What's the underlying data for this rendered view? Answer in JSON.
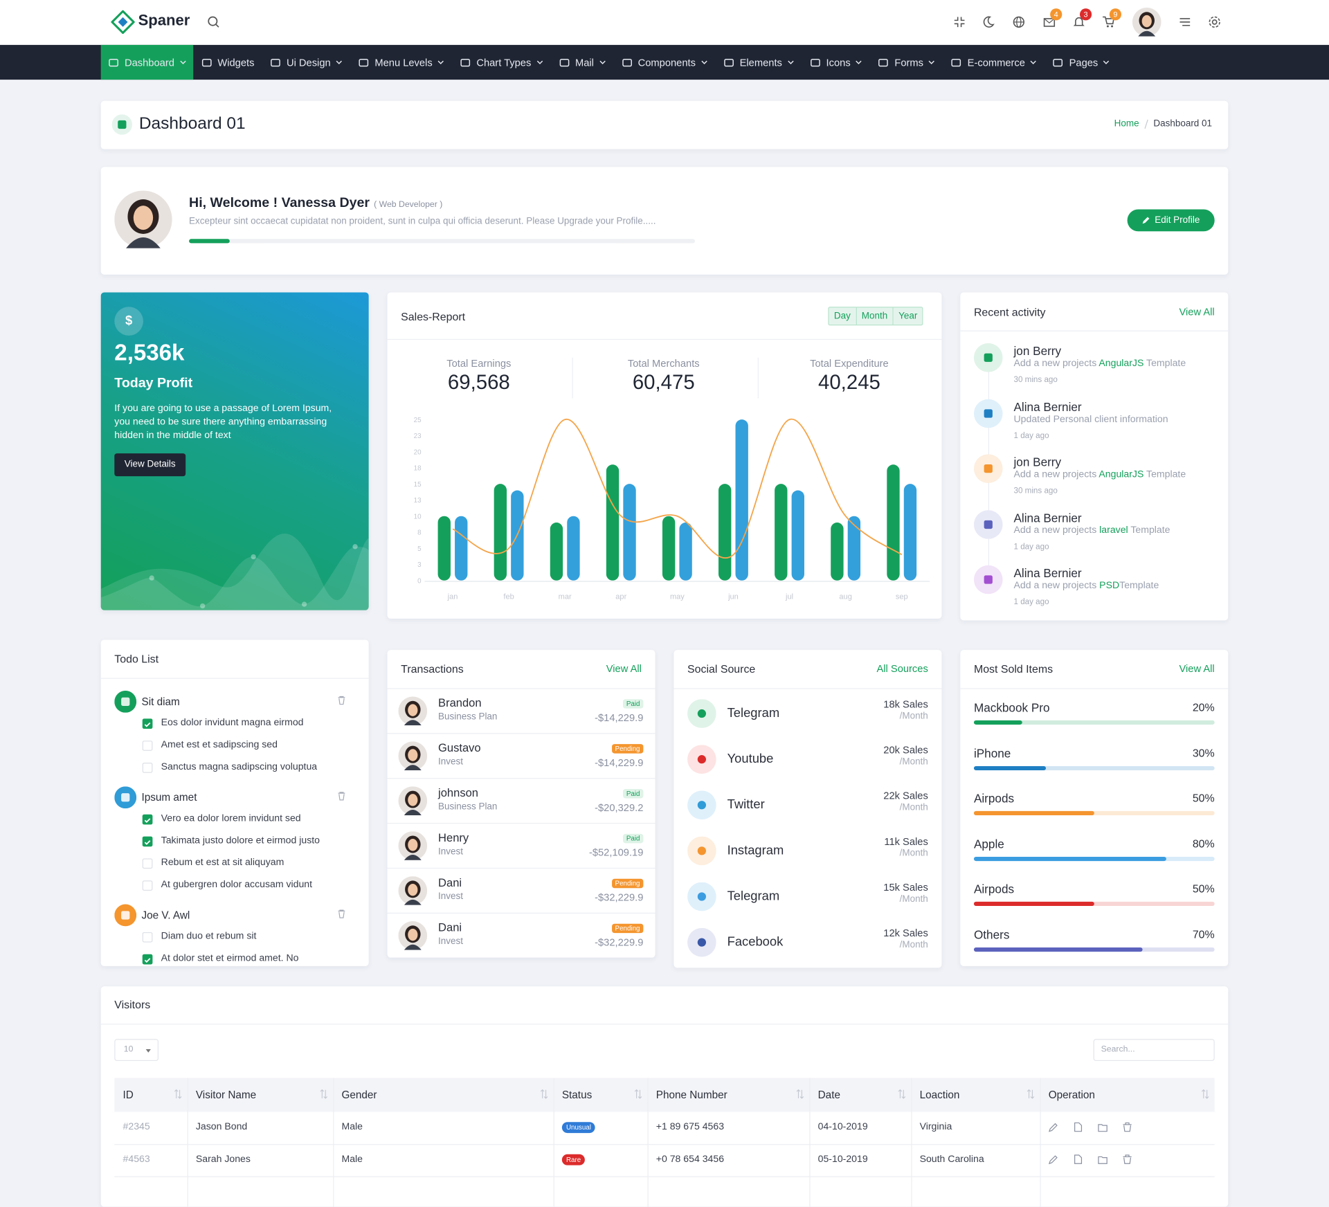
{
  "header": {
    "brand": "Spaner",
    "badges": [
      4,
      3,
      9
    ]
  },
  "nav": [
    "Dashboard",
    "Widgets",
    "Ui Design",
    "Menu Levels",
    "Chart Types",
    "Mail",
    "Components",
    "Elements",
    "Icons",
    "Forms",
    "E-commerce",
    "Pages"
  ],
  "page": {
    "title": "Dashboard 01",
    "breadcrumb": [
      "Home",
      "Dashboard 01"
    ]
  },
  "welcome": {
    "greeting": "Hi, Welcome ! Vanessa Dyer",
    "role": "( Web Developer )",
    "text": "Excepteur sint occaecat cupidatat non proident, sunt in culpa qui officia deserunt. Please Upgrade your Profile.....",
    "progress": 8,
    "button": "Edit Profile"
  },
  "profit": {
    "icon": "$",
    "value": "2,536k",
    "label": "Today Profit",
    "text": "If you are going to use a passage of Lorem Ipsum, you need to be sure there anything embarrassing hidden in the middle of text",
    "button": "View Details"
  },
  "sales": {
    "title": "Sales-Report",
    "periods": [
      "Day",
      "Month",
      "Year"
    ],
    "stats": [
      {
        "label": "Total Earnings",
        "value": "69,568"
      },
      {
        "label": "Total Merchants",
        "value": "60,475"
      },
      {
        "label": "Total Expenditure",
        "value": "40,245"
      }
    ]
  },
  "chart_data": {
    "type": "bar",
    "categories": [
      "jan",
      "feb",
      "mar",
      "apr",
      "may",
      "jun",
      "jul",
      "aug",
      "sep"
    ],
    "series": [
      {
        "color": "#14a05b",
        "values": [
          10,
          15,
          9,
          18,
          10,
          15,
          15,
          9,
          18
        ]
      },
      {
        "color": "#33a0dc",
        "values": [
          10,
          14,
          10,
          15,
          9,
          25,
          14,
          10,
          15
        ]
      },
      {
        "type": "line",
        "color": "#f4a54a",
        "values": [
          8,
          5,
          25,
          10,
          10,
          4,
          25,
          10,
          4
        ]
      }
    ],
    "ylim": [
      0,
      25
    ],
    "yticks": [
      0,
      {
        "value": 2.5,
        "label": "3"
      },
      5,
      {
        "value": 7.5,
        "label": "8"
      },
      10,
      {
        "value": 12.5,
        "label": "13"
      },
      15,
      {
        "value": 17.5,
        "label": "18"
      },
      20,
      {
        "value": 22.5,
        "label": "23"
      },
      25
    ],
    "grid": false
  },
  "activity": {
    "title": "Recent activity",
    "link": "View All",
    "items": [
      {
        "name": "jon Berry",
        "pre": "Add a new projects ",
        "highlight": "AngularJS",
        "post": " Template",
        "time": "30 mins ago"
      },
      {
        "name": "Alina Bernier",
        "pre": "Updated Personal client information",
        "time": "1 day ago"
      },
      {
        "name": "jon Berry",
        "pre": "Add a new projects ",
        "highlight": "AngularJS",
        "post": " Template",
        "time": "30 mins ago"
      },
      {
        "name": "Alina Bernier",
        "pre": "Add a new projects ",
        "highlight": "laravel",
        "post": " Template",
        "time": "1 day ago"
      },
      {
        "name": "Alina Bernier",
        "pre": "Add a new projects ",
        "highlight": "PSD",
        "post": "Template",
        "time": "1 day ago"
      }
    ]
  },
  "todo": {
    "title": "Todo List",
    "groups": [
      {
        "title": "Sit diam",
        "items": [
          {
            "text": "Eos dolor invidunt magna eirmod",
            "checked": true
          },
          {
            "text": "Amet est et sadipscing sed",
            "checked": false
          },
          {
            "text": "Sanctus magna sadipscing voluptua",
            "checked": false
          }
        ]
      },
      {
        "title": "Ipsum amet",
        "items": [
          {
            "text": "Vero ea dolor lorem invidunt sed",
            "checked": true
          },
          {
            "text": "Takimata justo dolore et eirmod justo",
            "checked": true
          },
          {
            "text": "Rebum et est at sit aliquyam",
            "checked": false
          },
          {
            "text": "At gubergren dolor accusam vidunt",
            "checked": false
          }
        ]
      },
      {
        "title": "Joe V. Awl",
        "items": [
          {
            "text": "Diam duo et rebum sit",
            "checked": false
          },
          {
            "text": "At dolor stet et eirmod amet. No",
            "checked": true
          }
        ]
      }
    ]
  },
  "transactions": {
    "title": "Transactions",
    "link": "View All",
    "rows": [
      {
        "name": "Brandon",
        "plan": "Business Plan",
        "status": "Paid",
        "amount": "-$14,229.9"
      },
      {
        "name": "Gustavo",
        "plan": "Invest",
        "status": "Pending",
        "amount": "-$14,229.9"
      },
      {
        "name": "johnson",
        "plan": "Business Plan",
        "status": "Paid",
        "amount": "-$20,329.2"
      },
      {
        "name": "Henry",
        "plan": "Invest",
        "status": "Paid",
        "amount": "-$52,109.19"
      },
      {
        "name": "Dani",
        "plan": "Invest",
        "status": "Pending",
        "amount": "-$32,229.9"
      },
      {
        "name": "Dani",
        "plan": "Invest",
        "status": "Pending",
        "amount": "-$32,229.9"
      }
    ]
  },
  "social": {
    "title": "Social Source",
    "link": "All Sources",
    "rows": [
      {
        "name": "Telegram",
        "sales": "18k Sales",
        "per": "/Month"
      },
      {
        "name": "Youtube",
        "sales": "20k Sales",
        "per": "/Month"
      },
      {
        "name": "Twitter",
        "sales": "22k Sales",
        "per": "/Month"
      },
      {
        "name": "Instagram",
        "sales": "11k Sales",
        "per": "/Month"
      },
      {
        "name": "Telegram",
        "sales": "15k Sales",
        "per": "/Month"
      },
      {
        "name": "Facebook",
        "sales": "12k Sales",
        "per": "/Month"
      }
    ]
  },
  "most_sold": {
    "title": "Most Sold Items",
    "link": "View All",
    "items": [
      {
        "name": "Mackbook Pro",
        "value": 20,
        "label": "20%",
        "color": "#14a05b"
      },
      {
        "name": "iPhone",
        "value": 30,
        "label": "30%",
        "color": "#1f7fc3"
      },
      {
        "name": "Airpods",
        "value": 50,
        "label": "50%",
        "color": "#f4952e"
      },
      {
        "name": "Apple",
        "value": 80,
        "label": "80%",
        "color": "#3b9de0"
      },
      {
        "name": "Airpods",
        "value": 50,
        "label": "50%",
        "color": "#dc2b2b"
      },
      {
        "name": "Others",
        "value": 70,
        "label": "70%",
        "color": "#5b62bd"
      }
    ]
  },
  "visitors": {
    "title": "Visitors",
    "length": "10",
    "search": "Search...",
    "columns": [
      "ID",
      "Visitor Name",
      "Gender",
      "Status",
      "Phone Number",
      "Date",
      "Loaction",
      "Operation"
    ],
    "rows": [
      [
        "#2345",
        "Jason Bond",
        "Male",
        "Unusual",
        "+1 89 675 4563",
        "04-10-2019",
        "Virginia"
      ],
      [
        "#4563",
        "Sarah Jones",
        "Male",
        "Rare",
        "+0 78 654 3456",
        "05-10-2019",
        "South Carolina"
      ]
    ]
  }
}
